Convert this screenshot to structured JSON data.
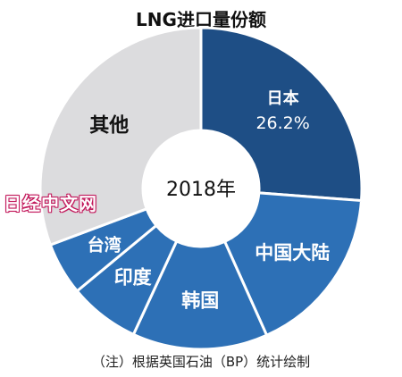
{
  "chart_data": {
    "type": "pie",
    "title": "LNG进口量份额",
    "center_label": "2018年",
    "slices": [
      {
        "label": "日本",
        "value": 26.2,
        "value_label": "26.2%",
        "color": "#1e4e85",
        "text_color": "#ffffff"
      },
      {
        "label": "中国大陆",
        "value": 17.1,
        "color": "#2d70b6",
        "text_color": "#ffffff"
      },
      {
        "label": "韩国",
        "value": 13.6,
        "color": "#2d70b6",
        "text_color": "#ffffff"
      },
      {
        "label": "印度",
        "value": 7.1,
        "color": "#2d70b6",
        "text_color": "#ffffff"
      },
      {
        "label": "台湾",
        "value": 5.3,
        "color": "#2d70b6",
        "text_color": "#ffffff"
      },
      {
        "label": "其他",
        "value": 30.7,
        "color": "#dcdcde",
        "text_color": "#111111"
      }
    ]
  },
  "watermark": "日经中文网",
  "footnote": "（注）根据英国石油（BP）统计绘制"
}
